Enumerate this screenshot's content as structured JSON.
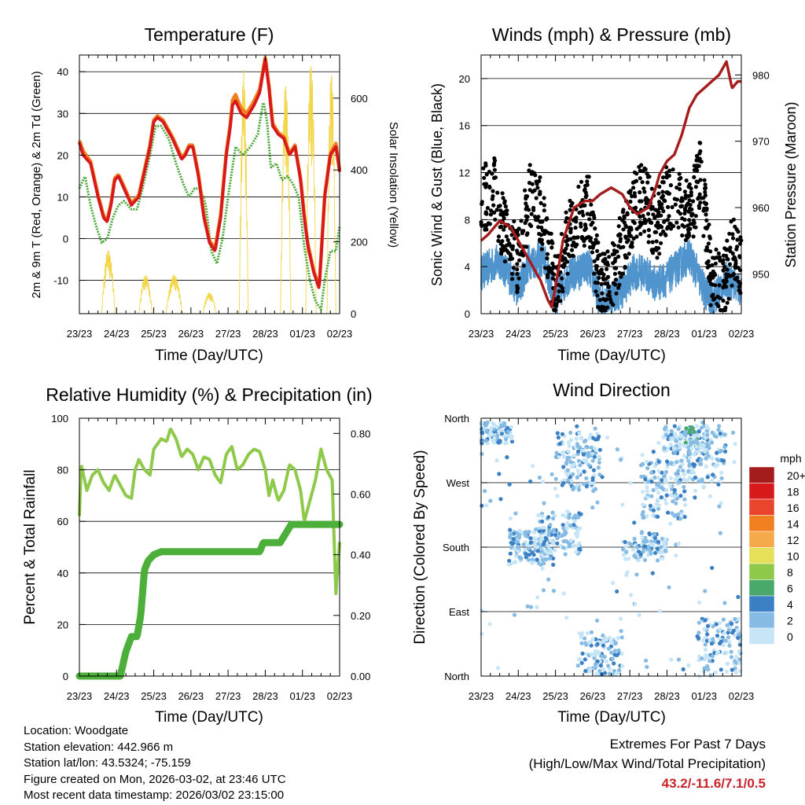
{
  "x_ticks": [
    "23/23",
    "24/23",
    "25/23",
    "26/23",
    "27/23",
    "28/23",
    "01/23",
    "02/23"
  ],
  "xlabel": "Time (Day/UTC)",
  "colors": {
    "temp_2m": "#d7191c",
    "temp_9m": "#f07f1f",
    "dewpoint": "#4aa83a",
    "solar": "#f2d547",
    "gust": "#000000",
    "wind": "#4f94cd",
    "pressure": "#a61c1c",
    "rh": "#8ec94a",
    "precip": "#4caf3a",
    "grid": "#000000"
  },
  "chart_data": [
    {
      "type": "line",
      "title": "Temperature (F)",
      "ylabel": "2m & 9m T (Red, Orange) & 2m Td (Green)",
      "y2label": "Solar Insolation (Yellow)",
      "ylim": [
        -18,
        44
      ],
      "yticks": [
        -10,
        0,
        10,
        20,
        30,
        40
      ],
      "y2lim": [
        0,
        720
      ],
      "y2ticks": [
        0,
        200,
        400,
        600
      ],
      "x_range_days": [
        0,
        7
      ],
      "series": [
        {
          "name": "2m T",
          "t": [
            0,
            0.1,
            0.3,
            0.5,
            0.65,
            0.75,
            0.85,
            0.95,
            1.05,
            1.2,
            1.4,
            1.6,
            1.75,
            1.9,
            2.0,
            2.1,
            2.25,
            2.5,
            2.75,
            2.85,
            2.95,
            3.05,
            3.2,
            3.35,
            3.5,
            3.65,
            3.8,
            3.95,
            4.05,
            4.12,
            4.2,
            4.35,
            4.5,
            4.7,
            4.85,
            5.0,
            5.1,
            5.2,
            5.35,
            5.5,
            5.65,
            5.8,
            5.95,
            6.05,
            6.15,
            6.3,
            6.45,
            6.6,
            6.75,
            6.9,
            7.0
          ],
          "values": [
            23,
            20,
            18,
            10,
            5,
            4,
            8,
            14,
            15,
            12,
            8,
            10,
            16,
            22,
            28,
            29,
            28,
            24,
            19,
            20,
            22,
            22,
            15,
            5,
            -1,
            -3,
            5,
            20,
            26,
            32,
            33,
            30,
            29,
            32,
            35,
            43,
            36,
            27,
            25,
            24,
            20,
            22,
            14,
            5,
            -2,
            -8,
            -12,
            10,
            20,
            22,
            16
          ]
        },
        {
          "name": "9m T",
          "t": [
            0,
            0.1,
            0.3,
            0.5,
            0.65,
            0.75,
            0.85,
            0.95,
            1.05,
            1.2,
            1.4,
            1.6,
            1.75,
            1.9,
            2.0,
            2.1,
            2.25,
            2.5,
            2.75,
            2.85,
            2.95,
            3.05,
            3.2,
            3.35,
            3.5,
            3.65,
            3.8,
            3.95,
            4.05,
            4.12,
            4.2,
            4.35,
            4.5,
            4.7,
            4.85,
            5.0,
            5.1,
            5.2,
            5.35,
            5.5,
            5.65,
            5.8,
            5.95,
            6.05,
            6.15,
            6.3,
            6.45,
            6.6,
            6.75,
            6.9,
            7.0
          ],
          "values": [
            23.5,
            21,
            18.5,
            10.5,
            5.5,
            4.5,
            8.5,
            14.5,
            15.3,
            12.5,
            8.4,
            10.5,
            16.5,
            22.5,
            28.4,
            29.4,
            28.4,
            24.4,
            19.5,
            20.4,
            22.4,
            22.4,
            15.6,
            5.6,
            -0.5,
            -2.4,
            5.6,
            20.6,
            26.8,
            33.2,
            34.5,
            31.2,
            30,
            33,
            35.8,
            43.4,
            36.6,
            27.6,
            25.4,
            24.4,
            20.4,
            22.4,
            14.4,
            5.4,
            -1.5,
            -7.6,
            -11.6,
            10.4,
            20.4,
            22.8,
            16.4
          ]
        },
        {
          "name": "2m Td",
          "t": [
            0,
            0.15,
            0.3,
            0.45,
            0.6,
            0.75,
            0.9,
            1.05,
            1.2,
            1.4,
            1.55,
            1.7,
            1.9,
            2.05,
            2.2,
            2.4,
            2.6,
            2.8,
            2.95,
            3.1,
            3.25,
            3.4,
            3.55,
            3.7,
            3.85,
            4.0,
            4.2,
            4.4,
            4.6,
            4.8,
            4.95,
            5.05,
            5.15,
            5.3,
            5.45,
            5.6,
            5.75,
            5.9,
            6.05,
            6.2,
            6.35,
            6.5,
            6.6,
            6.75,
            6.9,
            7.0
          ],
          "values": [
            12,
            15,
            8,
            3,
            -1,
            0,
            5,
            8,
            9,
            7,
            7,
            12,
            20,
            27,
            27,
            24,
            18,
            13,
            10,
            12,
            12,
            8,
            -3,
            -6,
            0,
            10,
            22,
            20,
            22,
            25,
            33,
            28,
            17,
            18,
            14,
            15,
            13,
            10,
            -2,
            -10,
            -15,
            -17,
            -10,
            -3,
            -3,
            3
          ]
        }
      ],
      "solar": {
        "peaks": [
          {
            "day": 0.78,
            "peak": 180,
            "w": 0.18
          },
          {
            "day": 1.78,
            "peak": 110,
            "w": 0.18
          },
          {
            "day": 2.55,
            "peak": 110,
            "w": 0.22
          },
          {
            "day": 3.5,
            "peak": 60,
            "w": 0.18
          },
          {
            "day": 4.42,
            "peak": 680,
            "w": 0.12
          },
          {
            "day": 5.55,
            "peak": 660,
            "w": 0.14
          },
          {
            "day": 6.23,
            "peak": 720,
            "w": 0.14
          },
          {
            "day": 6.78,
            "peak": 700,
            "w": 0.12
          }
        ]
      }
    },
    {
      "type": "scatter+line",
      "title": "Winds (mph) & Pressure (mb)",
      "ylabel": "Sonic Wind & Gust (Blue, Black)",
      "y2label": "Station Pressure (Maroon)",
      "ylim": [
        0,
        22
      ],
      "yticks": [
        0,
        4,
        8,
        12,
        16,
        20
      ],
      "y2lim": [
        944,
        983
      ],
      "y2ticks": [
        950,
        960,
        970,
        980
      ],
      "wind_level": {
        "t": [
          0,
          0.5,
          1.0,
          1.3,
          1.7,
          2.0,
          2.3,
          2.6,
          2.9,
          3.2,
          3.5,
          3.8,
          4.1,
          4.4,
          4.7,
          5.0,
          5.3,
          5.6,
          6.0,
          6.2,
          6.4,
          6.6,
          6.8,
          7.0
        ],
        "values": [
          3.5,
          4.5,
          2,
          4.5,
          4.5,
          1,
          3,
          3.5,
          4,
          1,
          1.5,
          2,
          3.5,
          3.5,
          2.5,
          3,
          4,
          5,
          2,
          1,
          2,
          3,
          2.5,
          2
        ]
      },
      "gust_level": {
        "t": [
          0,
          0.3,
          0.6,
          1.0,
          1.3,
          1.6,
          2.0,
          2.3,
          2.6,
          2.9,
          3.2,
          3.5,
          3.8,
          4.1,
          4.4,
          4.7,
          5.0,
          5.3,
          5.6,
          5.9,
          6.2,
          6.5,
          6.8,
          7.0
        ],
        "values": [
          9,
          11,
          7,
          4,
          10,
          9,
          2,
          6,
          8,
          9,
          2,
          3,
          6,
          9,
          10,
          7,
          10,
          10,
          8,
          12,
          3,
          2,
          6,
          4
        ]
      },
      "pressure": {
        "t": [
          0,
          0.2,
          0.5,
          0.8,
          1.0,
          1.2,
          1.4,
          1.6,
          1.8,
          1.9,
          2.0,
          2.2,
          2.5,
          2.8,
          3.0,
          3.2,
          3.5,
          3.8,
          4.0,
          4.2,
          4.5,
          4.7,
          4.8,
          4.9,
          5.0,
          5.2,
          5.4,
          5.6,
          5.8,
          6.0,
          6.2,
          6.4,
          6.6,
          6.75,
          6.9,
          7.0
        ],
        "values": [
          955,
          956,
          958,
          957,
          955,
          953,
          951,
          949,
          946,
          945,
          948,
          955,
          960,
          961,
          961,
          962,
          963,
          962,
          960,
          959,
          960,
          963,
          965,
          966,
          967,
          968,
          971,
          975,
          977,
          978,
          979,
          980,
          982,
          978,
          979,
          979
        ]
      }
    },
    {
      "type": "line",
      "title": "Relative Humidity (%) & Precipitation (in)",
      "ylabel": "Percent & Total Rainfall",
      "ylim": [
        0,
        100
      ],
      "yticks": [
        0,
        20,
        40,
        60,
        80,
        100
      ],
      "y2lim": [
        0,
        0.85
      ],
      "y2ticks": [
        "0.00",
        "0.20",
        "0.40",
        "0.60",
        "0.80"
      ],
      "series": [
        {
          "name": "RH",
          "t": [
            0,
            0.05,
            0.2,
            0.35,
            0.5,
            0.65,
            0.8,
            0.95,
            1.1,
            1.25,
            1.4,
            1.5,
            1.6,
            1.75,
            1.9,
            2.0,
            2.1,
            2.2,
            2.35,
            2.45,
            2.6,
            2.75,
            2.9,
            3.05,
            3.2,
            3.35,
            3.5,
            3.65,
            3.8,
            3.95,
            4.1,
            4.25,
            4.4,
            4.55,
            4.7,
            4.85,
            5.0,
            5.1,
            5.2,
            5.35,
            5.5,
            5.65,
            5.8,
            5.95,
            6.05,
            6.2,
            6.35,
            6.5,
            6.65,
            6.8,
            6.9,
            7.0
          ],
          "values": [
            62,
            82,
            72,
            78,
            80,
            75,
            72,
            78,
            74,
            70,
            69,
            80,
            84,
            80,
            78,
            88,
            90,
            92,
            91,
            96,
            92,
            85,
            88,
            86,
            80,
            85,
            84,
            78,
            75,
            86,
            89,
            80,
            82,
            86,
            88,
            87,
            80,
            70,
            76,
            68,
            72,
            82,
            80,
            72,
            60,
            68,
            76,
            88,
            80,
            76,
            32,
            52
          ]
        },
        {
          "name": "Precip",
          "t": [
            0,
            1.0,
            1.05,
            1.1,
            1.25,
            1.4,
            1.45,
            1.55,
            1.65,
            1.75,
            1.85,
            2.0,
            2.2,
            2.5,
            3.0,
            4.0,
            4.5,
            4.85,
            4.95,
            5.4,
            5.55,
            5.7,
            6.0,
            7.0
          ],
          "values": [
            0,
            0,
            0,
            0,
            0.08,
            0.13,
            0.13,
            0.13,
            0.2,
            0.35,
            0.38,
            0.4,
            0.41,
            0.41,
            0.41,
            0.41,
            0.41,
            0.41,
            0.44,
            0.44,
            0.47,
            0.5,
            0.5,
            0.5
          ]
        }
      ]
    },
    {
      "type": "scatter",
      "title": "Wind Direction",
      "ylabel": "Direction (Colored By Speed)",
      "yticks": [
        "North",
        "West",
        "South",
        "East",
        "North"
      ],
      "legend_title": "mph",
      "legend_labels": [
        "20+",
        "18",
        "16",
        "14",
        "12",
        "10",
        "8",
        "6",
        "4",
        "2",
        "0"
      ],
      "legend_colors": [
        "#a51c1c",
        "#d7191c",
        "#e8452c",
        "#f07f1f",
        "#f5a94a",
        "#e6df5a",
        "#8ec94a",
        "#4aa86a",
        "#3b80c4",
        "#86bbe3",
        "#c6e5f7"
      ],
      "clusters": [
        {
          "t": 0.25,
          "dir": 340,
          "spread": 15
        },
        {
          "t": 1.35,
          "dir": 180,
          "spread": 25
        },
        {
          "t": 2.1,
          "dir": 200,
          "spread": 30
        },
        {
          "t": 2.6,
          "dir": 300,
          "spread": 40
        },
        {
          "t": 3.2,
          "dir": 30,
          "spread": 30
        },
        {
          "t": 4.4,
          "dir": 180,
          "spread": 20
        },
        {
          "t": 4.9,
          "dir": 260,
          "spread": 40
        },
        {
          "t": 5.5,
          "dir": 330,
          "spread": 20
        },
        {
          "t": 6.0,
          "dir": 310,
          "spread": 40
        },
        {
          "t": 6.4,
          "dir": 40,
          "spread": 40
        }
      ]
    }
  ],
  "info": {
    "location": "Location: Woodgate",
    "elevation": "Station elevation: 442.966 m",
    "latlon": "Station lat/lon: 43.5324; -75.159",
    "created": "Figure created on Mon, 2026-03-02, at 23:46 UTC",
    "recent": "Most recent data timestamp: 2026/03/02 23:15:00"
  },
  "extremes": {
    "line1": "Extremes For Past 7 Days",
    "line2": "(High/Low/Max Wind/Total Precipitation)",
    "values": "43.2/-11.6/7.1/0.5"
  }
}
